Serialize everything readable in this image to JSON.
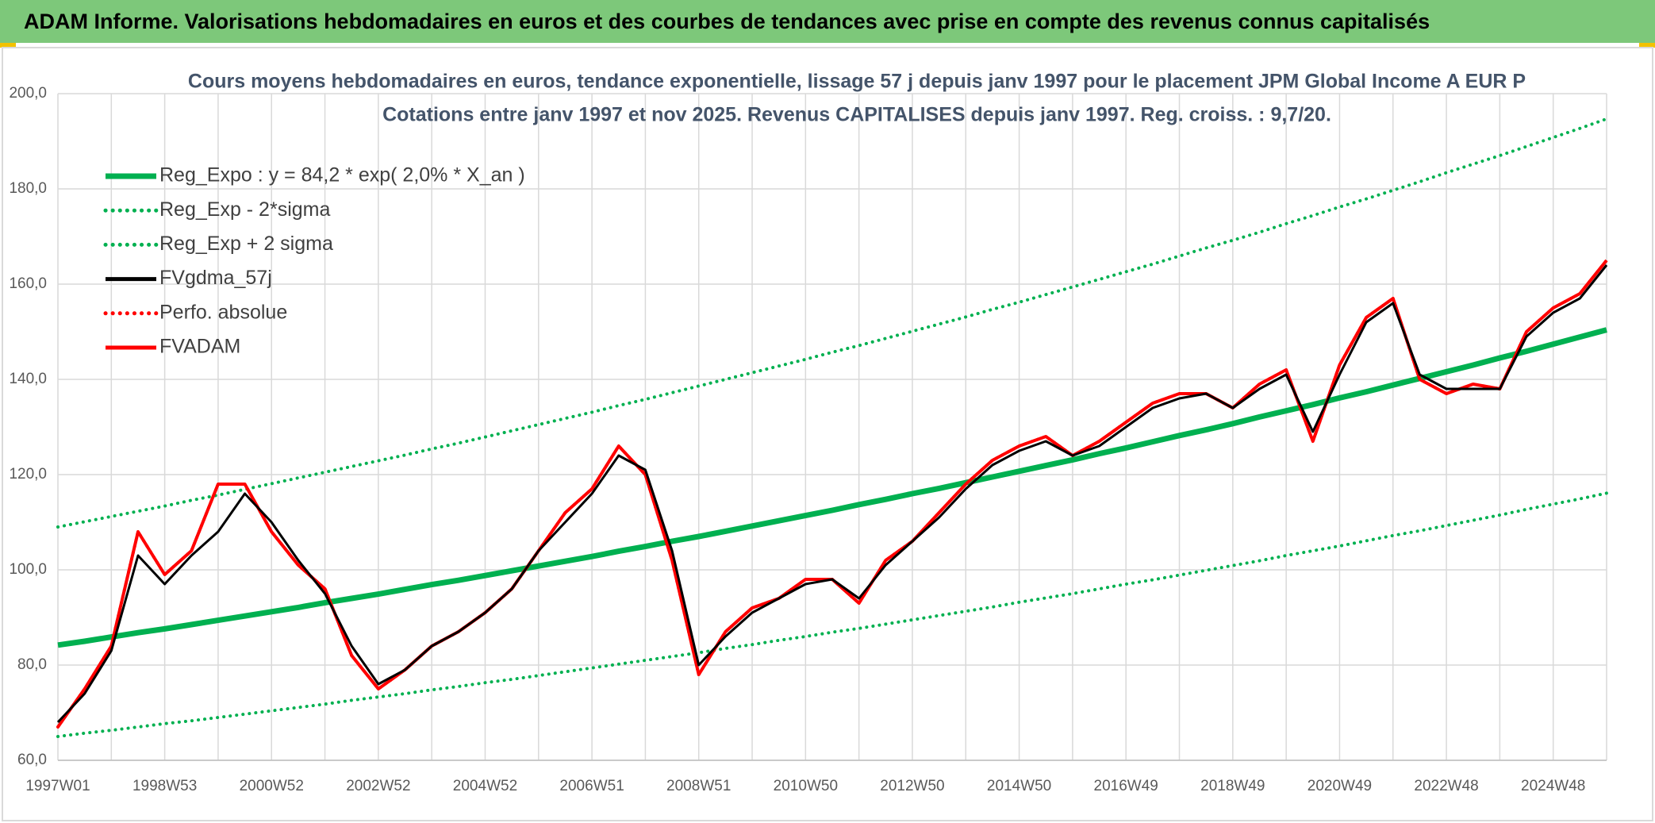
{
  "header": {
    "title": "ADAM Informe. Valorisations hebdomadaires en euros et des courbes de tendances avec prise en compte des revenus connus capitalisés"
  },
  "chart_data": {
    "type": "line",
    "title": "Cours moyens hebdomadaires en euros, tendance exponentielle, lissage 57 j depuis janv 1997 pour le placement JPM Global Income A EUR P",
    "subtitle": "Cotations entre janv 1997 et nov 2025. Revenus CAPITALISES depuis janv 1997. Reg. croiss. : 9,7/20.",
    "categories": [
      "1997W01",
      null,
      null,
      null,
      "1998W53",
      null,
      null,
      null,
      "2000W52",
      null,
      null,
      null,
      "2002W52",
      null,
      null,
      null,
      "2004W52",
      null,
      null,
      null,
      "2006W51",
      null,
      null,
      null,
      "2008W51",
      null,
      null,
      null,
      "2010W50",
      null,
      null,
      null,
      "2012W50",
      null,
      null,
      null,
      "2014W50",
      null,
      null,
      null,
      "2016W49",
      null,
      null,
      null,
      "2018W49",
      null,
      null,
      null,
      "2020W49",
      null,
      null,
      null,
      "2022W48",
      null,
      null,
      null,
      "2024W48",
      null,
      null
    ],
    "ylim": [
      60,
      200
    ],
    "yticks": [
      {
        "value": 60,
        "label": "60,0"
      },
      {
        "value": 80,
        "label": "80,0"
      },
      {
        "value": 100,
        "label": "100,0"
      },
      {
        "value": 120,
        "label": "120,0"
      },
      {
        "value": 140,
        "label": "140,0"
      },
      {
        "value": 160,
        "label": "160,0"
      },
      {
        "value": 180,
        "label": "180,0"
      },
      {
        "value": 200,
        "label": "200,0"
      }
    ],
    "grid": true,
    "legend": "top-left",
    "series": [
      {
        "name": "Reg_Expo : y = 84,2 * exp( 2,0% *  X_an )",
        "color": "#00b050",
        "style": "solid",
        "values": [
          84.2,
          85.0,
          85.9,
          86.8,
          87.6,
          88.5,
          89.4,
          90.3,
          91.2,
          92.1,
          93.1,
          94.0,
          94.9,
          95.9,
          96.9,
          97.8,
          98.8,
          99.8,
          100.8,
          101.8,
          102.8,
          103.9,
          104.9,
          106.0,
          107.0,
          108.1,
          109.2,
          110.3,
          111.4,
          112.5,
          113.7,
          114.8,
          116.0,
          117.1,
          118.3,
          119.5,
          120.7,
          121.9,
          123.1,
          124.4,
          125.6,
          126.9,
          128.2,
          129.4,
          130.7,
          132.1,
          133.4,
          134.7,
          136.1,
          137.4,
          138.8,
          140.2,
          141.6,
          143.0,
          144.5,
          145.9,
          147.4,
          148.9,
          150.4
        ]
      },
      {
        "name": "Reg_Exp - 2*sigma",
        "color": "#00b050",
        "style": "dotted",
        "values": [
          65.0,
          65.7,
          66.3,
          67.0,
          67.7,
          68.3,
          69.0,
          69.7,
          70.4,
          71.1,
          71.8,
          72.6,
          73.3,
          74.0,
          74.8,
          75.5,
          76.3,
          77.0,
          77.8,
          78.6,
          79.4,
          80.2,
          81.0,
          81.8,
          82.6,
          83.5,
          84.3,
          85.2,
          86.0,
          86.9,
          87.7,
          88.6,
          89.5,
          90.4,
          91.3,
          92.2,
          93.2,
          94.1,
          95.0,
          96.0,
          97.0,
          97.9,
          98.9,
          99.9,
          100.9,
          101.9,
          103.0,
          104.0,
          105.0,
          106.1,
          107.2,
          108.2,
          109.3,
          110.4,
          111.5,
          112.7,
          113.8,
          114.9,
          116.1
        ]
      },
      {
        "name": "Reg_Exp + 2 sigma",
        "color": "#00b050",
        "style": "dotted",
        "values": [
          109.0,
          110.1,
          111.2,
          112.3,
          113.4,
          114.6,
          115.7,
          116.9,
          118.1,
          119.3,
          120.5,
          121.7,
          122.9,
          124.1,
          125.4,
          126.6,
          127.9,
          129.2,
          130.5,
          131.8,
          133.1,
          134.5,
          135.8,
          137.2,
          138.6,
          140.0,
          141.4,
          142.8,
          144.2,
          145.7,
          147.1,
          148.6,
          150.1,
          151.6,
          153.1,
          154.7,
          156.2,
          157.8,
          159.4,
          161.0,
          162.6,
          164.2,
          165.9,
          167.6,
          169.2,
          170.9,
          172.7,
          174.4,
          176.2,
          177.9,
          179.7,
          181.5,
          183.4,
          185.2,
          187.0,
          188.9,
          190.8,
          192.7,
          194.7
        ]
      },
      {
        "name": "FVgdma_57j",
        "color": "#000000",
        "style": "solid",
        "values": [
          68,
          74,
          83,
          103,
          97,
          103,
          108,
          116,
          110,
          102,
          95,
          84,
          76,
          79,
          84,
          87,
          91,
          96,
          104,
          110,
          116,
          124,
          121,
          104,
          80,
          86,
          91,
          94,
          97,
          98,
          94,
          101,
          106,
          111,
          117,
          122,
          125,
          127,
          124,
          126,
          130,
          134,
          136,
          137,
          134,
          138,
          141,
          129,
          141,
          152,
          156,
          141,
          138,
          138,
          138,
          149,
          154,
          157,
          164
        ]
      },
      {
        "name": "Perfo. absolue",
        "color": "#ff0000",
        "style": "dotted",
        "values": [
          67,
          75,
          84,
          108,
          99,
          104,
          118,
          118,
          108,
          101,
          96,
          82,
          75,
          79,
          84,
          87,
          91,
          96,
          104,
          112,
          117,
          126,
          120,
          102,
          78,
          87,
          92,
          94,
          98,
          98,
          93,
          102,
          106,
          112,
          118,
          123,
          126,
          128,
          124,
          127,
          131,
          135,
          137,
          137,
          134,
          139,
          142,
          127,
          143,
          153,
          157,
          140,
          137,
          139,
          138,
          150,
          155,
          158,
          165
        ]
      },
      {
        "name": "FVADAM",
        "color": "#ff0000",
        "style": "solid",
        "values": [
          67,
          75,
          84,
          108,
          99,
          104,
          118,
          118,
          108,
          101,
          96,
          82,
          75,
          79,
          84,
          87,
          91,
          96,
          104,
          112,
          117,
          126,
          120,
          102,
          78,
          87,
          92,
          94,
          98,
          98,
          93,
          102,
          106,
          112,
          118,
          123,
          126,
          128,
          124,
          127,
          131,
          135,
          137,
          137,
          134,
          139,
          142,
          127,
          143,
          153,
          157,
          140,
          137,
          139,
          138,
          150,
          155,
          158,
          165
        ]
      }
    ]
  }
}
